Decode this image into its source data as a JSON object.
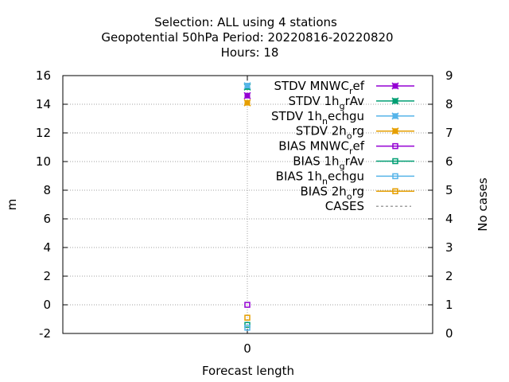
{
  "chart_data": {
    "type": "scatter",
    "title_lines": [
      "Selection: ALL using     4 stations",
      "Geopotential 50hPa   Period: 20220816-20220820",
      "Hours:  18"
    ],
    "xlabel": "Forecast length",
    "ylabel": "m",
    "y2label": "No cases",
    "x_ticks": [
      "0"
    ],
    "ylim": [
      -2,
      16
    ],
    "y_ticks": [
      -2,
      0,
      2,
      4,
      6,
      8,
      10,
      12,
      14,
      16
    ],
    "y2lim": [
      0,
      9
    ],
    "y2_ticks": [
      0,
      1,
      2,
      3,
      4,
      5,
      6,
      7,
      8,
      9
    ],
    "grid": true,
    "legend_position": "top-right",
    "series": [
      {
        "label_pre": "STDV MNWC",
        "label_sub": "r",
        "label_post": "ef",
        "color": "#9400d3",
        "marker": "x-square",
        "x": [
          0
        ],
        "y": [
          14.6
        ]
      },
      {
        "label_pre": "STDV 1h",
        "label_sub": "g",
        "label_post": "rAv",
        "color": "#009e73",
        "marker": "x-square",
        "x": [
          0
        ],
        "y": [
          15.2
        ]
      },
      {
        "label_pre": "STDV 1h",
        "label_sub": "n",
        "label_post": "echgu",
        "color": "#56b4e9",
        "marker": "x-square",
        "x": [
          0
        ],
        "y": [
          15.3
        ]
      },
      {
        "label_pre": "STDV 2h",
        "label_sub": "o",
        "label_post": "rg",
        "color": "#e69f00",
        "marker": "x-square",
        "x": [
          0
        ],
        "y": [
          14.1
        ]
      },
      {
        "label_pre": "BIAS MNWC",
        "label_sub": "r",
        "label_post": "ef",
        "color": "#9400d3",
        "marker": "open-square",
        "x": [
          0
        ],
        "y": [
          0.0
        ]
      },
      {
        "label_pre": "BIAS 1h",
        "label_sub": "g",
        "label_post": "rAv",
        "color": "#009e73",
        "marker": "open-square",
        "x": [
          0
        ],
        "y": [
          -1.4
        ]
      },
      {
        "label_pre": "BIAS 1h",
        "label_sub": "n",
        "label_post": "echgu",
        "color": "#56b4e9",
        "marker": "open-square",
        "x": [
          0
        ],
        "y": [
          -1.6
        ]
      },
      {
        "label_pre": "BIAS 2h",
        "label_sub": "o",
        "label_post": "rg",
        "color": "#e69f00",
        "marker": "open-square",
        "x": [
          0
        ],
        "y": [
          -0.9
        ]
      },
      {
        "label_pre": "CASES",
        "label_sub": "",
        "label_post": "",
        "color": "#a0a0a0",
        "marker": "dashed-line",
        "x": [],
        "y": []
      }
    ]
  }
}
